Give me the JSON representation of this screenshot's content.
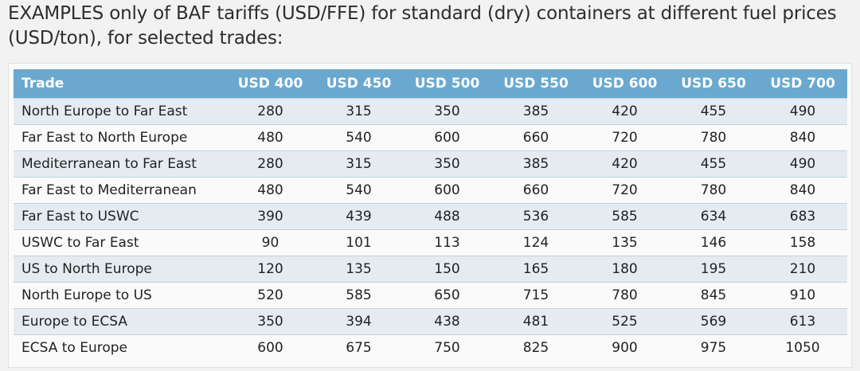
{
  "caption": "EXAMPLES only of BAF tariffs (USD/FFE) for standard (dry) containers at different fuel prices (USD/ton), for selected trades:",
  "table": {
    "trade_header": "Trade",
    "price_headers": [
      "USD 400",
      "USD 450",
      "USD 500",
      "USD 550",
      "USD 600",
      "USD 650",
      "USD 700"
    ],
    "rows": [
      {
        "trade": "North Europe to Far East",
        "values": [
          "280",
          "315",
          "350",
          "385",
          "420",
          "455",
          "490"
        ]
      },
      {
        "trade": "Far East to North Europe",
        "values": [
          "480",
          "540",
          "600",
          "660",
          "720",
          "780",
          "840"
        ]
      },
      {
        "trade": "Mediterranean to Far East",
        "values": [
          "280",
          "315",
          "350",
          "385",
          "420",
          "455",
          "490"
        ]
      },
      {
        "trade": "Far East to Mediterranean",
        "values": [
          "480",
          "540",
          "600",
          "660",
          "720",
          "780",
          "840"
        ]
      },
      {
        "trade": "Far East to USWC",
        "values": [
          "390",
          "439",
          "488",
          "536",
          "585",
          "634",
          "683"
        ]
      },
      {
        "trade": "USWC to Far East",
        "values": [
          "90",
          "101",
          "113",
          "124",
          "135",
          "146",
          "158"
        ]
      },
      {
        "trade": "US to North Europe",
        "values": [
          "120",
          "135",
          "150",
          "165",
          "180",
          "195",
          "210"
        ]
      },
      {
        "trade": "North Europe to US",
        "values": [
          "520",
          "585",
          "650",
          "715",
          "780",
          "845",
          "910"
        ]
      },
      {
        "trade": "Europe to ECSA",
        "values": [
          "350",
          "394",
          "438",
          "481",
          "525",
          "569",
          "613"
        ]
      },
      {
        "trade": "ECSA to Europe",
        "values": [
          "600",
          "675",
          "750",
          "825",
          "900",
          "975",
          "1050"
        ]
      }
    ]
  },
  "colors": {
    "header_background": "#6aa8cf",
    "header_text": "#ffffff",
    "stripe_background": "#e4ecf2",
    "page_background": "#f2f2f2"
  }
}
